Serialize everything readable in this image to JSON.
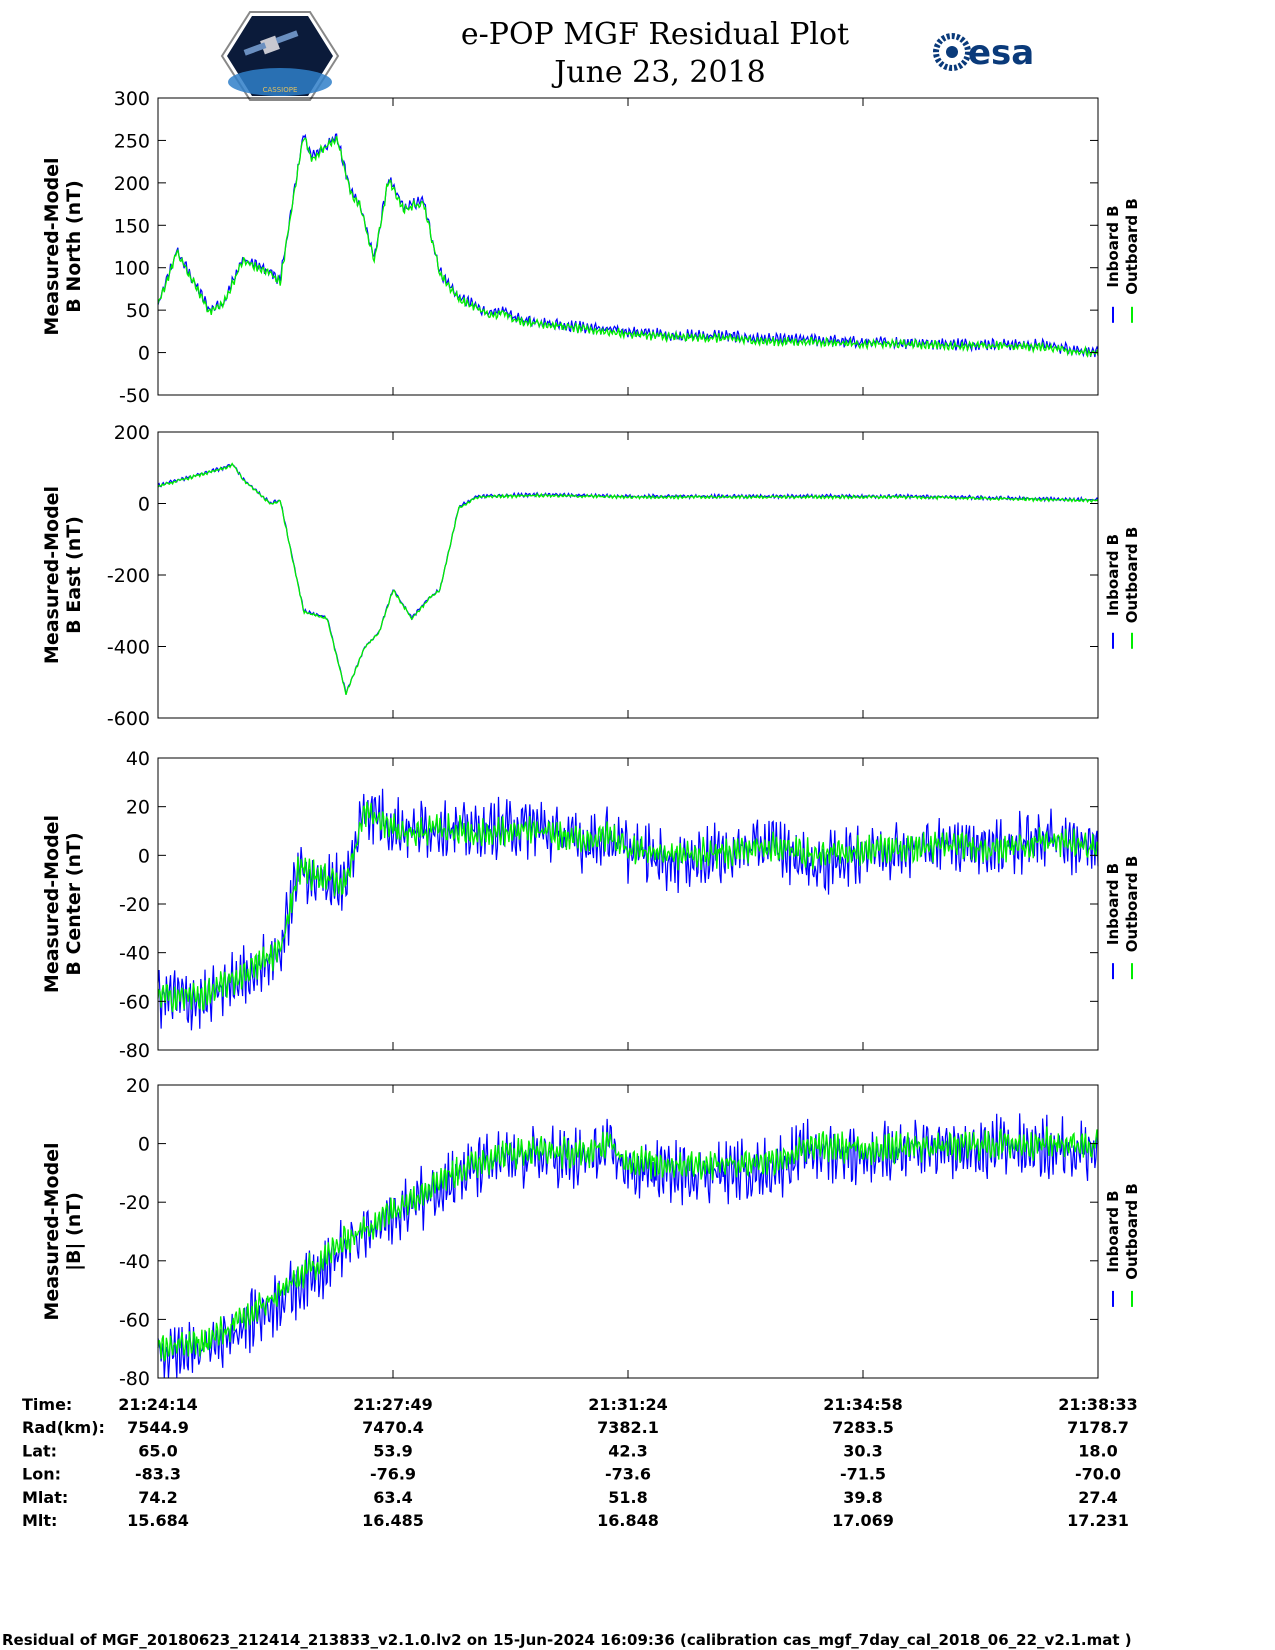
{
  "header": {
    "title": "e-POP MGF Residual Plot",
    "date": "June 23, 2018",
    "left_logo_icon": "cassiope-satellite-logo-icon",
    "left_logo_text": "CASSIOPE",
    "right_logo_icon": "esa-logo-icon",
    "right_logo_text": "esa"
  },
  "colors": {
    "inboard": "#0000ff",
    "outboard": "#00ee00"
  },
  "legend": {
    "inboard_label": "Inboard B",
    "outboard_label": "Outboard B"
  },
  "chart_data": [
    {
      "type": "line",
      "id": "north",
      "ylabel_line1": "Measured-Model",
      "ylabel_line2": "B North (nT)",
      "ylim": [
        -50,
        300
      ],
      "yticks": [
        -50,
        0,
        50,
        100,
        150,
        200,
        250,
        300
      ],
      "ytick_labels": [
        "-50",
        "0",
        "50",
        "100",
        "150",
        "200",
        "250",
        "300"
      ],
      "x": [
        0,
        0.02,
        0.055,
        0.07,
        0.09,
        0.12,
        0.13,
        0.155,
        0.163,
        0.19,
        0.205,
        0.215,
        0.23,
        0.245,
        0.262,
        0.282,
        0.3,
        0.32,
        0.355,
        0.37,
        0.38,
        0.45,
        0.5,
        0.55,
        0.6,
        0.65,
        0.7,
        0.75,
        0.8,
        0.85,
        0.9,
        0.95,
        1.0
      ],
      "series": [
        {
          "name": "Inboard B",
          "values": [
            55,
            120,
            50,
            60,
            110,
            95,
            85,
            260,
            230,
            255,
            190,
            175,
            110,
            205,
            170,
            180,
            95,
            65,
            45,
            50,
            40,
            30,
            25,
            20,
            20,
            15,
            15,
            12,
            12,
            10,
            10,
            8,
            0
          ]
        },
        {
          "name": "Outboard B",
          "values": [
            55,
            118,
            48,
            58,
            108,
            93,
            83,
            258,
            228,
            253,
            188,
            173,
            108,
            203,
            168,
            178,
            93,
            63,
            43,
            48,
            38,
            28,
            22,
            18,
            17,
            13,
            13,
            10,
            10,
            8,
            8,
            6,
            -2
          ]
        }
      ],
      "noise_inboard": 8,
      "noise_outboard": 6
    },
    {
      "type": "line",
      "id": "east",
      "ylabel_line1": "Measured-Model",
      "ylabel_line2": "B East (nT)",
      "ylim": [
        -600,
        200
      ],
      "yticks": [
        -600,
        -400,
        -200,
        0,
        200
      ],
      "ytick_labels": [
        "-600",
        "-400",
        "-200",
        "0",
        "200"
      ],
      "x": [
        0,
        0.07,
        0.08,
        0.09,
        0.12,
        0.13,
        0.155,
        0.18,
        0.2,
        0.22,
        0.235,
        0.25,
        0.27,
        0.29,
        0.3,
        0.32,
        0.34,
        0.4,
        0.5,
        0.6,
        0.7,
        0.8,
        0.9,
        1.0
      ],
      "series": [
        {
          "name": "Inboard B",
          "values": [
            50,
            100,
            110,
            70,
            0,
            10,
            -300,
            -320,
            -530,
            -400,
            -360,
            -240,
            -320,
            -260,
            -240,
            -10,
            20,
            25,
            20,
            20,
            20,
            20,
            15,
            10
          ]
        },
        {
          "name": "Outboard B",
          "values": [
            48,
            98,
            108,
            68,
            -2,
            8,
            -302,
            -322,
            -532,
            -402,
            -362,
            -242,
            -322,
            -262,
            -242,
            -12,
            18,
            23,
            18,
            18,
            18,
            18,
            13,
            8
          ]
        }
      ],
      "noise_inboard": 6,
      "noise_outboard": 5
    },
    {
      "type": "line",
      "id": "center",
      "ylabel_line1": "Measured-Model",
      "ylabel_line2": "B Center (nT)",
      "ylim": [
        -80,
        40
      ],
      "yticks": [
        -80,
        -60,
        -40,
        -20,
        0,
        20,
        40
      ],
      "ytick_labels": [
        "-80",
        "-60",
        "-40",
        "-20",
        "0",
        "20",
        "40"
      ],
      "x": [
        0,
        0.05,
        0.09,
        0.13,
        0.15,
        0.17,
        0.2,
        0.22,
        0.25,
        0.27,
        0.3,
        0.34,
        0.4,
        0.45,
        0.48,
        0.5,
        0.55,
        0.6,
        0.65,
        0.7,
        0.75,
        0.8,
        0.85,
        0.9,
        0.95,
        1.0
      ],
      "series": [
        {
          "name": "Inboard B",
          "values": [
            -58,
            -60,
            -50,
            -40,
            -5,
            -10,
            -12,
            20,
            12,
            10,
            12,
            10,
            12,
            5,
            8,
            2,
            -2,
            0,
            5,
            -5,
            2,
            3,
            5,
            3,
            8,
            2
          ]
        },
        {
          "name": "Outboard B",
          "values": [
            -58,
            -58,
            -49,
            -39,
            -5,
            -9,
            -11,
            18,
            11,
            9,
            11,
            9,
            10,
            6,
            8,
            3,
            0,
            1,
            4,
            0,
            2,
            3,
            4,
            3,
            6,
            3
          ]
        }
      ],
      "noise_inboard": 14,
      "noise_outboard": 7
    },
    {
      "type": "line",
      "id": "total",
      "ylabel_line1": "Measured-Model",
      "ylabel_line2": "|B| (nT)",
      "ylim": [
        -80,
        20
      ],
      "yticks": [
        -80,
        -60,
        -40,
        -20,
        0,
        20
      ],
      "ytick_labels": [
        "-80",
        "-60",
        "-40",
        "-20",
        "0",
        "20"
      ],
      "x": [
        0,
        0.05,
        0.1,
        0.15,
        0.2,
        0.25,
        0.3,
        0.35,
        0.4,
        0.45,
        0.48,
        0.5,
        0.55,
        0.6,
        0.65,
        0.7,
        0.75,
        0.8,
        0.85,
        0.9,
        0.95,
        1.0
      ],
      "series": [
        {
          "name": "Inboard B",
          "values": [
            -72,
            -70,
            -60,
            -48,
            -35,
            -25,
            -14,
            -7,
            -4,
            -6,
            -2,
            -9,
            -10,
            -10,
            -9,
            -2,
            -4,
            -2,
            -3,
            -1,
            -2,
            -1
          ]
        },
        {
          "name": "Outboard B",
          "values": [
            -70,
            -68,
            -58,
            -46,
            -33,
            -23,
            -12,
            -5,
            -2,
            -4,
            0,
            -6,
            -7,
            -7,
            -6,
            -1,
            -2,
            -1,
            -1,
            0,
            0,
            0
          ]
        }
      ],
      "noise_inboard": 12,
      "noise_outboard": 6
    }
  ],
  "xaxis_table": {
    "row_labels": [
      "Time:",
      "Rad(km):",
      "Lat:",
      "Lon:",
      "Mlat:",
      "Mlt:"
    ],
    "columns": [
      [
        "21:24:14",
        "7544.9",
        "65.0",
        "-83.3",
        "74.2",
        "15.684"
      ],
      [
        "21:27:49",
        "7470.4",
        "53.9",
        "-76.9",
        "63.4",
        "16.485"
      ],
      [
        "21:31:24",
        "7382.1",
        "42.3",
        "-73.6",
        "51.8",
        "16.848"
      ],
      [
        "21:34:58",
        "7283.5",
        "30.3",
        "-71.5",
        "39.8",
        "17.069"
      ],
      [
        "21:38:33",
        "7178.7",
        "18.0",
        "-70.0",
        "27.4",
        "17.231"
      ]
    ]
  },
  "footer": "Residual of MGF_20180623_212414_213833_v2.1.0.lv2 on 15-Jun-2024 16:09:36 (calibration cas_mgf_7day_cal_2018_06_22_v2.1.mat )"
}
